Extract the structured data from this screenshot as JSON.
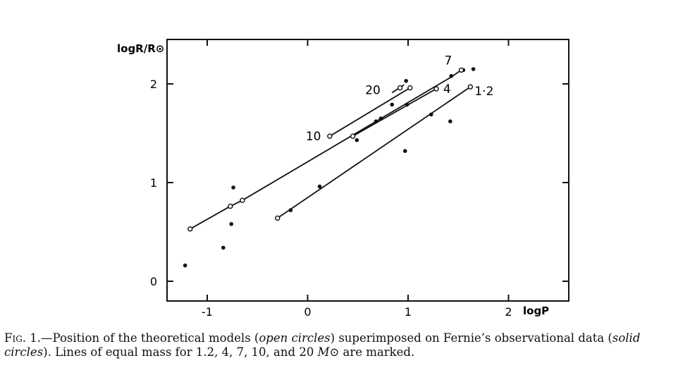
{
  "caption": {
    "fig_label": "Fig. 1.",
    "part1": "—Position of the theoretical models (",
    "open_term": "open circles",
    "part2": ") superimposed on Fernie’s observational data (",
    "solid_term": "solid circles",
    "part3": "). Lines of equal mass for 1.2, 4, 7, 10, and 20 ",
    "mass_symbol": "M⊙",
    "part4": " are marked."
  },
  "chart_data": {
    "type": "scatter",
    "xlabel": "logP",
    "ylabel": "logR/R⊙",
    "xlim": [
      -1.4,
      2.6
    ],
    "ylim": [
      -0.2,
      2.45
    ],
    "x_ticks": [
      -1,
      0,
      1,
      2
    ],
    "x_tick_labels": [
      "-1",
      "0",
      "1",
      "2"
    ],
    "y_ticks": [
      0,
      1,
      2
    ],
    "y_tick_labels": [
      "0",
      "1",
      "2"
    ],
    "grid": false,
    "mass_lines": [
      {
        "label": "1.2",
        "points": [
          [
            -0.3,
            0.64
          ],
          [
            1.62,
            1.97
          ]
        ]
      },
      {
        "label": "4",
        "points": [
          [
            0.45,
            1.47
          ],
          [
            1.28,
            1.95
          ]
        ]
      },
      {
        "label": "7",
        "points": [
          [
            -1.17,
            0.53
          ],
          [
            -0.77,
            0.76
          ],
          [
            -0.65,
            0.82
          ],
          [
            1.43,
            2.07
          ],
          [
            1.53,
            2.14
          ]
        ]
      },
      {
        "label": "10",
        "points": [
          [
            0.22,
            1.47
          ],
          [
            1.02,
            1.96
          ]
        ]
      },
      {
        "label": "20",
        "points": [
          [
            0.84,
            1.91
          ],
          [
            0.96,
            1.99
          ]
        ]
      }
    ],
    "theoretical_models_open": [
      [
        -1.17,
        0.53
      ],
      [
        -0.77,
        0.76
      ],
      [
        -0.65,
        0.82
      ],
      [
        -0.3,
        0.64
      ],
      [
        0.22,
        1.47
      ],
      [
        0.45,
        1.47
      ],
      [
        1.02,
        1.96
      ],
      [
        1.28,
        1.95
      ],
      [
        1.53,
        2.14
      ],
      [
        1.62,
        1.97
      ],
      [
        0.92,
        1.96
      ]
    ],
    "observed_solid": [
      [
        -1.22,
        0.16
      ],
      [
        -0.84,
        0.34
      ],
      [
        -0.76,
        0.58
      ],
      [
        -0.74,
        0.95
      ],
      [
        -0.17,
        0.72
      ],
      [
        0.12,
        0.96
      ],
      [
        0.49,
        1.43
      ],
      [
        0.68,
        1.62
      ],
      [
        0.73,
        1.65
      ],
      [
        0.84,
        1.79
      ],
      [
        0.97,
        1.32
      ],
      [
        0.99,
        1.79
      ],
      [
        0.98,
        2.03
      ],
      [
        1.23,
        1.69
      ],
      [
        1.42,
        1.62
      ],
      [
        1.43,
        2.08
      ],
      [
        1.55,
        2.14
      ],
      [
        1.65,
        2.15
      ]
    ]
  }
}
